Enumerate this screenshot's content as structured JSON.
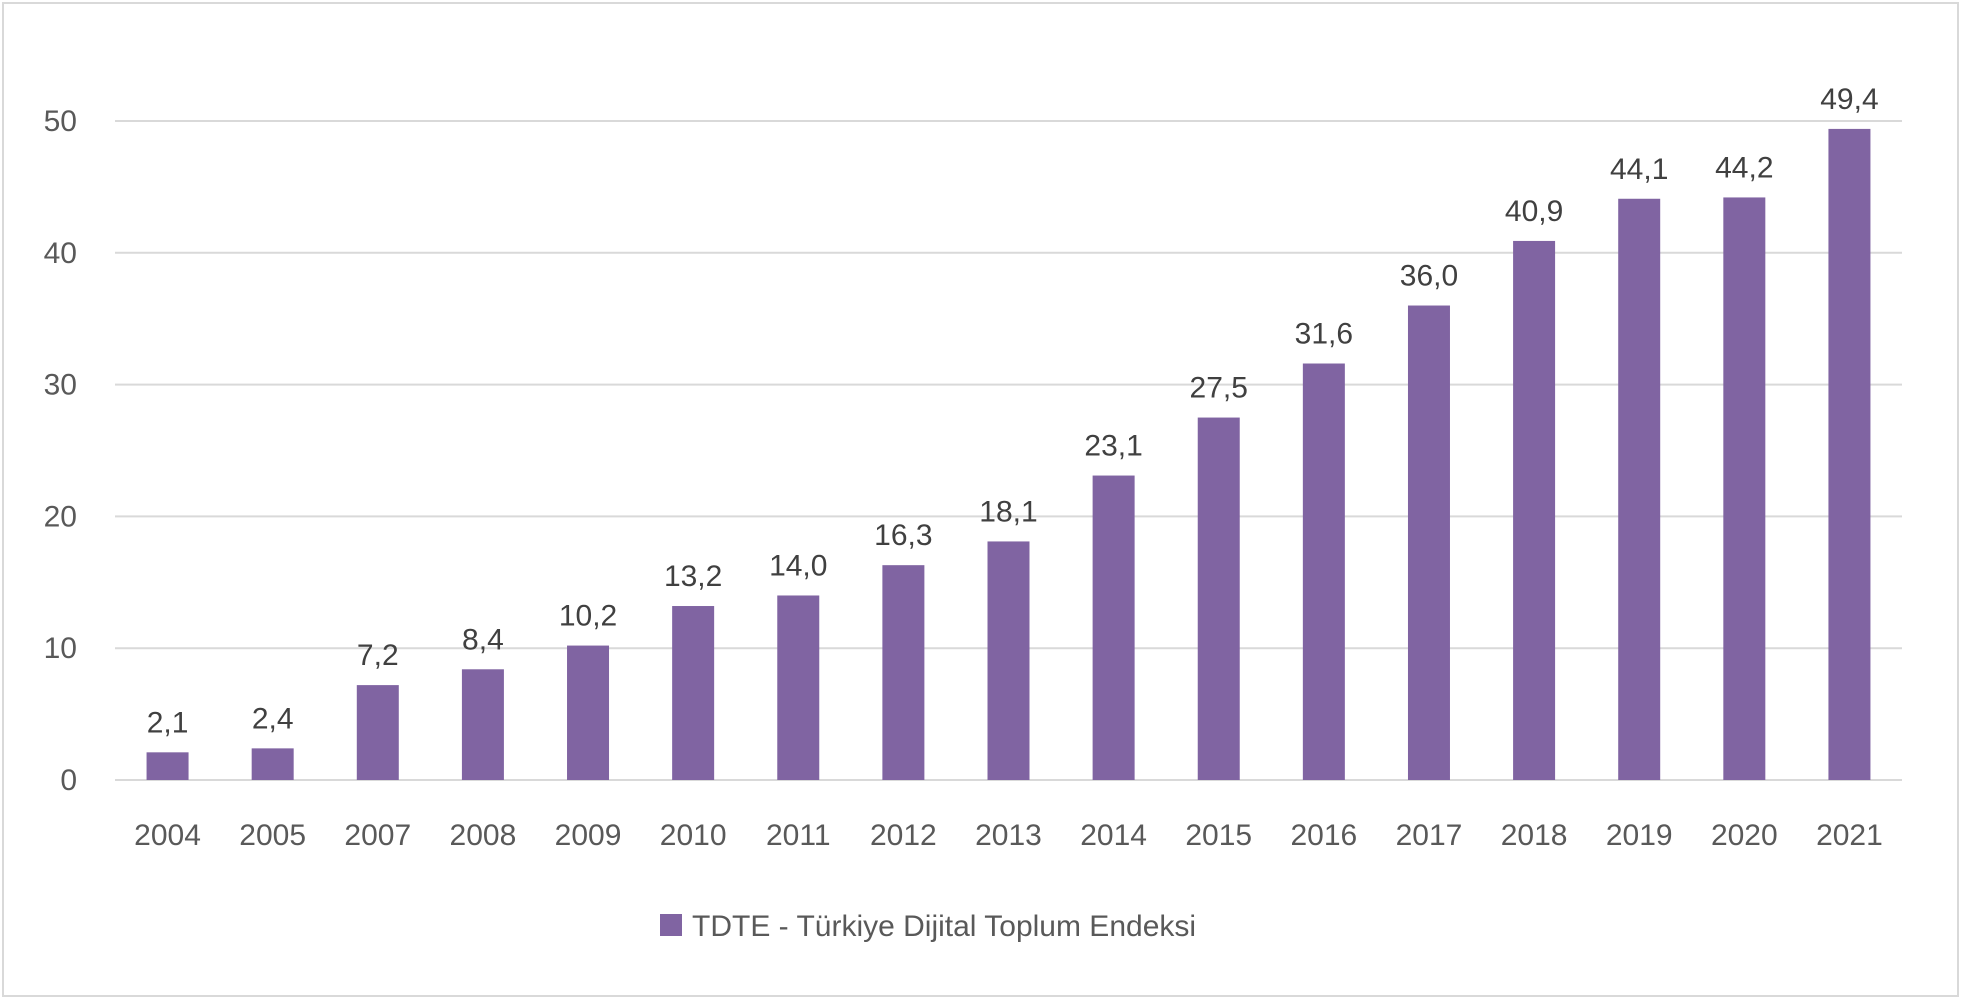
{
  "chart_data": {
    "type": "bar",
    "title": "",
    "xlabel": "",
    "ylabel": "",
    "categories": [
      "2004",
      "2005",
      "2007",
      "2008",
      "2009",
      "2010",
      "2011",
      "2012",
      "2013",
      "2014",
      "2015",
      "2016",
      "2017",
      "2018",
      "2019",
      "2020",
      "2021"
    ],
    "series": [
      {
        "name": "TDTE - Türkiye Dijital Toplum Endeksi",
        "values": [
          2.1,
          2.4,
          7.2,
          8.4,
          10.2,
          13.2,
          14.0,
          16.3,
          18.1,
          23.1,
          27.5,
          31.6,
          36.0,
          40.9,
          44.1,
          44.2,
          49.4
        ],
        "labels": [
          "2,1",
          "2,4",
          "7,2",
          "8,4",
          "10,2",
          "13,2",
          "14,0",
          "16,3",
          "18,1",
          "23,1",
          "27,5",
          "31,6",
          "36,0",
          "40,9",
          "44,1",
          "44,2",
          "49,4"
        ],
        "color": "#8064A2"
      }
    ],
    "ylim": [
      0,
      50
    ],
    "yticks": [
      0,
      10,
      20,
      30,
      40,
      50
    ],
    "grid": true,
    "legend_position": "bottom"
  }
}
